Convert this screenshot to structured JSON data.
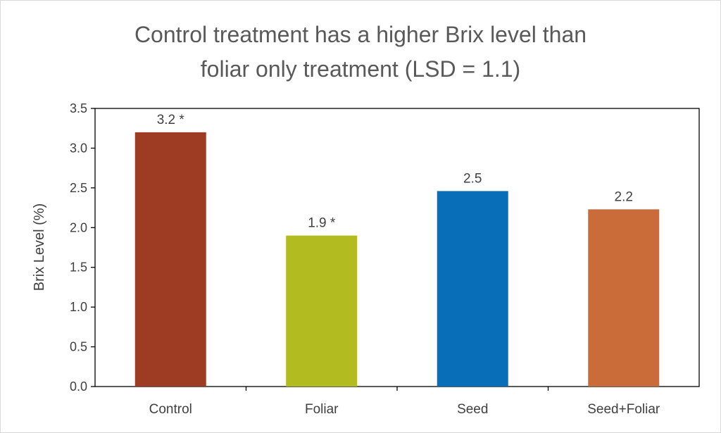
{
  "chart_data": {
    "type": "bar",
    "title_lines": [
      "Control treatment has a higher Brix level than",
      "foliar only treatment (LSD = 1.1)"
    ],
    "xlabel": "",
    "ylabel": "Brix Level (%)",
    "ylim": [
      0,
      3.5
    ],
    "yticks": [
      0.0,
      0.5,
      1.0,
      1.5,
      2.0,
      2.5,
      3.0,
      3.5
    ],
    "ytick_labels": [
      "0.0",
      "0.5",
      "1.0",
      "1.5",
      "2.0",
      "2.5",
      "3.0",
      "3.5"
    ],
    "categories": [
      "Control",
      "Foliar",
      "Seed",
      "Seed+Foliar"
    ],
    "values": [
      3.2,
      1.9,
      2.46,
      2.23
    ],
    "data_labels": [
      "3.2 *",
      "1.9 *",
      "2.5",
      "2.2"
    ],
    "colors": [
      "#9e3b23",
      "#b2bb1f",
      "#086eb8",
      "#c96c3a"
    ],
    "grid": false,
    "legend": "none"
  }
}
